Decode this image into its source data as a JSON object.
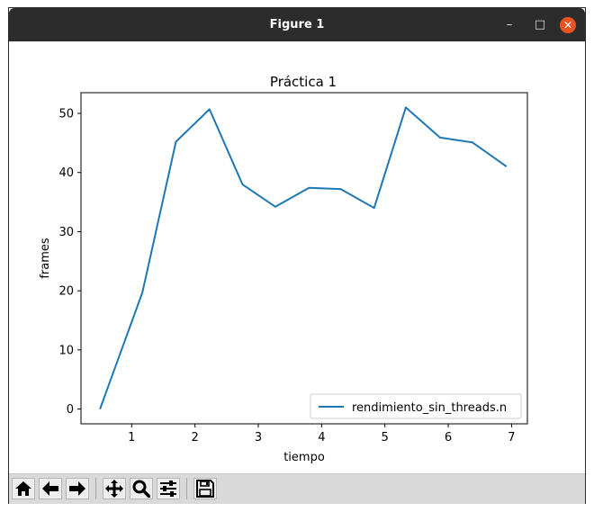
{
  "window": {
    "title": "Figure 1",
    "controls": {
      "minimize": "–",
      "maximize": "□",
      "close": "✕"
    }
  },
  "chart_data": {
    "type": "line",
    "title": "Práctica 1",
    "xlabel": "tiempo",
    "ylabel": "frames",
    "xlim": [
      0.2,
      7.25
    ],
    "ylim": [
      -2.5,
      53.5
    ],
    "xticks": [
      1,
      2,
      3,
      4,
      5,
      6,
      7
    ],
    "yticks": [
      0,
      10,
      20,
      30,
      40,
      50
    ],
    "grid": false,
    "legend_placement": "bottom-right",
    "series": [
      {
        "name": "rendimiento_sin_threads.n",
        "color": "#1f77b4",
        "x": [
          0.5,
          1.17,
          1.7,
          2.23,
          2.75,
          3.27,
          3.8,
          4.3,
          4.83,
          5.33,
          5.87,
          6.38,
          6.92
        ],
        "y": [
          0,
          19.7,
          45.2,
          50.7,
          38.0,
          34.2,
          37.4,
          37.2,
          34.0,
          51.0,
          45.9,
          45.1,
          41.0
        ]
      }
    ]
  },
  "toolbar": {
    "buttons": [
      {
        "name": "home-button",
        "icon": "home-icon"
      },
      {
        "name": "back-button",
        "icon": "arrow-left-icon"
      },
      {
        "name": "forward-button",
        "icon": "arrow-right-icon"
      },
      {
        "name": "pan-button",
        "icon": "move-icon"
      },
      {
        "name": "zoom-button",
        "icon": "magnifier-icon"
      },
      {
        "name": "configure-subplots-button",
        "icon": "sliders-icon"
      },
      {
        "name": "save-button",
        "icon": "floppy-disk-icon"
      }
    ]
  }
}
